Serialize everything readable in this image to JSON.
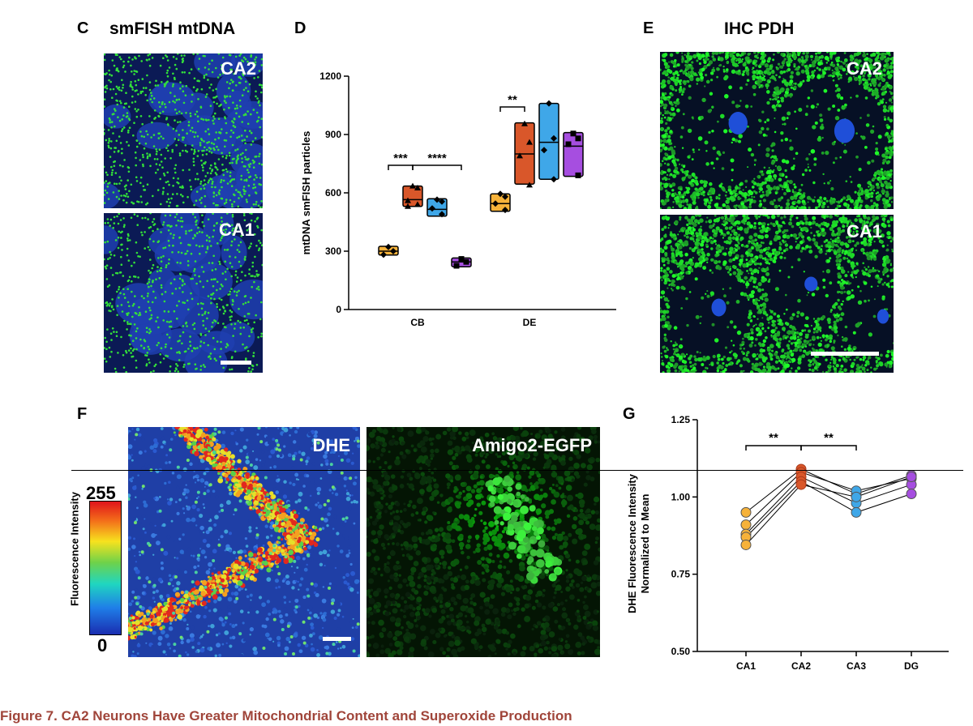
{
  "panel_c": {
    "letter": "C",
    "title": "smFISH mtDNA",
    "top_label": "CA2",
    "bottom_label": "CA1",
    "colors": {
      "nuclei": "#1f3fb0",
      "signal": "#33e03a"
    }
  },
  "panel_d": {
    "letter": "D",
    "colors": {
      "CA1": "#f6b23a",
      "CA2": "#d9572a",
      "CA3": "#3fa7e8",
      "DG": "#a64ee0"
    }
  },
  "panel_e": {
    "letter": "E",
    "title": "IHC PDH",
    "top_label": "CA2",
    "bottom_label": "CA1"
  },
  "panel_f": {
    "letter": "F",
    "dhe_label": "DHE",
    "egfp_label": "Amigo2-EGFP",
    "colorbar_max": "255",
    "colorbar_min": "0",
    "colorbar_label": "Fluorescence Intensity"
  },
  "panel_g": {
    "letter": "G"
  },
  "caption": "Figure 7.  CA2 Neurons Have Greater Mitochondrial Content and Superoxide Production",
  "chart_data": [
    {
      "type": "box",
      "panel": "D",
      "ylabel": "mtDNA smFISH particles",
      "ylim": [
        0,
        1200
      ],
      "yticks": [
        "0",
        "300",
        "600",
        "900",
        "1200"
      ],
      "categories": [
        "CB",
        "DE"
      ],
      "series": [
        {
          "color": "#f6b23a",
          "marker": "diamond"
        },
        {
          "color": "#d9572a",
          "marker": "triangle"
        },
        {
          "color": "#3fa7e8",
          "marker": "diamond"
        },
        {
          "color": "#a64ee0",
          "marker": "square"
        }
      ],
      "boxes": [
        {
          "category": "CB",
          "series": 0,
          "q1": 280,
          "median": 300,
          "q3": 325,
          "points": [
            322,
            300,
            282
          ]
        },
        {
          "category": "CB",
          "series": 1,
          "q1": 530,
          "median": 565,
          "q3": 635,
          "points": [
            635,
            625,
            560,
            540,
            530
          ]
        },
        {
          "category": "CB",
          "series": 2,
          "q1": 480,
          "median": 515,
          "q3": 570,
          "points": [
            565,
            555,
            520,
            490
          ]
        },
        {
          "category": "CB",
          "series": 3,
          "q1": 220,
          "median": 245,
          "q3": 265,
          "points": [
            260,
            245,
            225
          ]
        },
        {
          "category": "DE",
          "series": 0,
          "q1": 505,
          "median": 545,
          "q3": 595,
          "points": [
            595,
            580,
            545,
            512
          ]
        },
        {
          "category": "DE",
          "series": 1,
          "q1": 645,
          "median": 800,
          "q3": 960,
          "points": [
            955,
            860,
            790,
            640
          ]
        },
        {
          "category": "DE",
          "series": 2,
          "q1": 670,
          "median": 860,
          "q3": 1060,
          "points": [
            1060,
            880,
            820,
            670
          ]
        },
        {
          "category": "DE",
          "series": 3,
          "q1": 685,
          "median": 840,
          "q3": 910,
          "points": [
            905,
            880,
            850,
            690
          ]
        }
      ],
      "significance": [
        {
          "label": "***",
          "category": "CB",
          "from": 0,
          "to": 1
        },
        {
          "label": "****",
          "category": "CB",
          "from": 1,
          "to": 3
        },
        {
          "label": "**",
          "category": "DE",
          "from": 0,
          "to": 1
        }
      ]
    },
    {
      "type": "line",
      "panel": "G",
      "ylabel": "DHE Fluorescence Intensity\nNormalized to Mean",
      "ylim": [
        0.5,
        1.25
      ],
      "yticks": [
        "0.50",
        "0.75",
        "1.00",
        "1.25"
      ],
      "categories": [
        "CA1",
        "CA2",
        "CA3",
        "DG"
      ],
      "colors": [
        "#f6b23a",
        "#d9572a",
        "#3fa7e8",
        "#a64ee0"
      ],
      "series": [
        {
          "values": [
            0.95,
            1.09,
            1.01,
            1.07
          ]
        },
        {
          "values": [
            0.91,
            1.08,
            1.02,
            1.06
          ]
        },
        {
          "values": [
            0.88,
            1.065,
            0.98,
            1.04
          ]
        },
        {
          "values": [
            0.87,
            1.05,
            0.95,
            1.01
          ]
        },
        {
          "values": [
            0.845,
            1.04,
            1.0,
            1.065
          ]
        }
      ],
      "significance": [
        {
          "label": "**",
          "from": 0,
          "to": 1
        },
        {
          "label": "**",
          "from": 1,
          "to": 2
        }
      ]
    }
  ]
}
